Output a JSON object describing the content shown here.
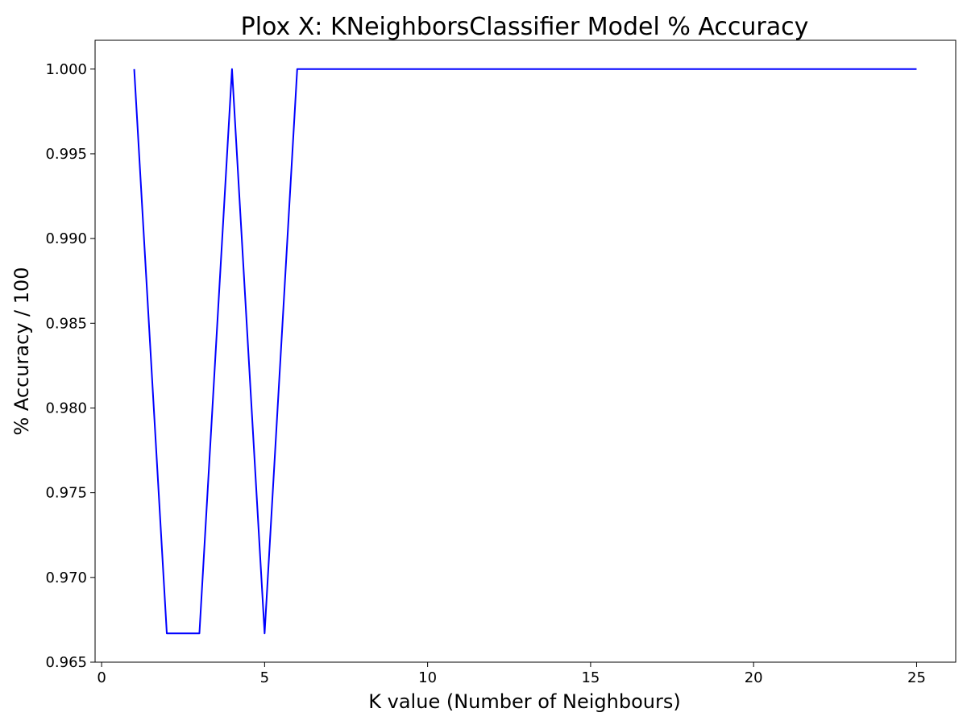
{
  "chart_data": {
    "type": "line",
    "title": "Plox X: KNeighborsClassifier Model % Accuracy",
    "xlabel": "K value (Number of Neighbours)",
    "ylabel": "% Accuracy / 100",
    "xlim": [
      -0.2,
      26.2
    ],
    "ylim": [
      0.965,
      1.0017
    ],
    "xticks": [
      0,
      5,
      10,
      15,
      20,
      25
    ],
    "xtick_labels": [
      "0",
      "5",
      "10",
      "15",
      "20",
      "25"
    ],
    "yticks": [
      0.965,
      0.97,
      0.975,
      0.98,
      0.985,
      0.99,
      0.995,
      1.0
    ],
    "ytick_labels": [
      "0.965",
      "0.970",
      "0.975",
      "0.980",
      "0.985",
      "0.990",
      "0.995",
      "1.000"
    ],
    "grid": false,
    "series": [
      {
        "color": "#0000ff",
        "x": [
          1,
          2,
          3,
          4,
          5,
          6,
          7,
          8,
          9,
          10,
          11,
          12,
          13,
          14,
          15,
          16,
          17,
          18,
          19,
          20,
          21,
          22,
          23,
          24,
          25
        ],
        "y": [
          1.0,
          0.9667,
          0.9667,
          1.0,
          0.9667,
          1.0,
          1.0,
          1.0,
          1.0,
          1.0,
          1.0,
          1.0,
          1.0,
          1.0,
          1.0,
          1.0,
          1.0,
          1.0,
          1.0,
          1.0,
          1.0,
          1.0,
          1.0,
          1.0,
          1.0
        ]
      }
    ]
  }
}
